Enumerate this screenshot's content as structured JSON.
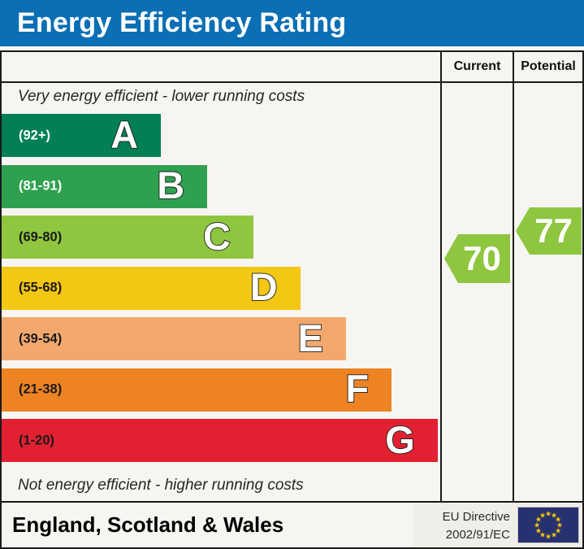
{
  "title": "Energy Efficiency Rating",
  "header": {
    "current": "Current",
    "potential": "Potential"
  },
  "captions": {
    "top": "Very energy efficient - lower running costs",
    "bottom": "Not energy efficient - higher running costs"
  },
  "chart_data": {
    "type": "bar",
    "title": "Energy Efficiency Rating",
    "bands": [
      {
        "letter": "A",
        "label": "(92+)",
        "range_min": 92,
        "range_max": 100,
        "color": "#008054",
        "label_color": "#ffffff",
        "width_pct": 36.3
      },
      {
        "letter": "B",
        "label": "(81-91)",
        "range_min": 81,
        "range_max": 91,
        "color": "#2ea14f",
        "label_color": "#ffffff",
        "width_pct": 46.9
      },
      {
        "letter": "C",
        "label": "(69-80)",
        "range_min": 69,
        "range_max": 80,
        "color": "#8ec63f",
        "label_color": "#1a1a1a",
        "width_pct": 57.4
      },
      {
        "letter": "D",
        "label": "(55-68)",
        "range_min": 55,
        "range_max": 68,
        "color": "#f3c713",
        "label_color": "#1a1a1a",
        "width_pct": 68.1
      },
      {
        "letter": "E",
        "label": "(39-54)",
        "range_min": 39,
        "range_max": 54,
        "color": "#f2a86d",
        "label_color": "#1a1a1a",
        "width_pct": 78.5
      },
      {
        "letter": "F",
        "label": "(21-38)",
        "range_min": 21,
        "range_max": 38,
        "color": "#ee8324",
        "label_color": "#1a1a1a",
        "width_pct": 88.9
      },
      {
        "letter": "G",
        "label": "(1-20)",
        "range_min": 1,
        "range_max": 20,
        "color": "#e12032",
        "label_color": "#1a1a1a",
        "width_pct": 99.4
      }
    ],
    "current": {
      "value": 70,
      "band": "C",
      "color": "#8ec63f"
    },
    "potential": {
      "value": 77,
      "band": "C",
      "color": "#8ec63f"
    }
  },
  "footer": {
    "region": "England, Scotland & Wales",
    "directive": [
      "EU Directive",
      "2002/91/EC"
    ],
    "flag_icon": "eu-flag",
    "flag_bg": "#273170",
    "star_color": "#ffcc00"
  },
  "colors": {
    "title_bar": "#0a6fb4",
    "title_text": "#ffffff",
    "border": "#1a1a1a",
    "background": "#f6f5f1"
  }
}
